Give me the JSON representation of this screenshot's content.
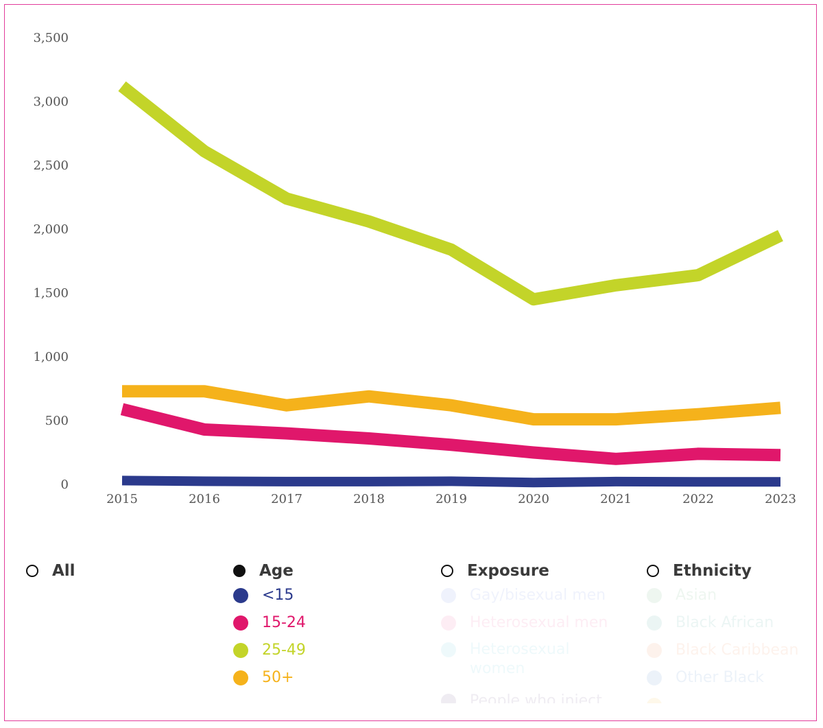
{
  "chart_data": {
    "type": "line",
    "x": [
      2015,
      2016,
      2017,
      2018,
      2019,
      2020,
      2021,
      2022,
      2023
    ],
    "x_tick_labels": [
      "2015",
      "2016",
      "2017",
      "2018",
      "2019",
      "2020",
      "2021",
      "2022",
      "2023"
    ],
    "ylim": [
      0,
      3500
    ],
    "y_ticks": [
      0,
      500,
      1000,
      1500,
      2000,
      2500,
      3000,
      3500
    ],
    "y_tick_labels": [
      "0",
      "500",
      "1,000",
      "1,500",
      "2,000",
      "2,500",
      "3,000",
      "3,500"
    ],
    "grid": false,
    "series": [
      {
        "name": "<15",
        "color": "#2b3a8c",
        "values": [
          30,
          25,
          22,
          22,
          25,
          15,
          22,
          20,
          20
        ]
      },
      {
        "name": "15-24",
        "color": "#e0176b",
        "values": [
          590,
          430,
          400,
          360,
          310,
          250,
          200,
          240,
          230
        ]
      },
      {
        "name": "25-49",
        "color": "#c3d429",
        "values": [
          3120,
          2610,
          2240,
          2060,
          1840,
          1450,
          1560,
          1640,
          1950
        ]
      },
      {
        "name": "50+",
        "color": "#f5b21b",
        "values": [
          730,
          730,
          620,
          690,
          620,
          510,
          510,
          550,
          600
        ]
      }
    ]
  },
  "legend": {
    "all": {
      "label": "All"
    },
    "age": {
      "label": "Age",
      "items": [
        {
          "label": "<15",
          "color": "#2b3a8c"
        },
        {
          "label": "15-24",
          "color": "#e0176b"
        },
        {
          "label": "25-49",
          "color": "#c3d429"
        },
        {
          "label": "50+",
          "color": "#f5b21b"
        }
      ]
    },
    "exposure": {
      "label": "Exposure",
      "items": [
        {
          "label": "Gay/bisexual men",
          "color": "#5c7ee0"
        },
        {
          "label": "Heterosexual men",
          "color": "#ee3f8c"
        },
        {
          "label": "Heterosexual women",
          "color": "#4ec3d6"
        },
        {
          "label": "People who inject",
          "color": "#5b3b7a"
        }
      ]
    },
    "ethnicity": {
      "label": "Ethnicity",
      "items": [
        {
          "label": "Asian",
          "color": "#4aa564"
        },
        {
          "label": "Black African",
          "color": "#2f9d8a"
        },
        {
          "label": "Black Caribbean",
          "color": "#f07a3a"
        },
        {
          "label": "Other Black",
          "color": "#3d7ac2"
        },
        {
          "label": "",
          "color": "#f5b21b"
        }
      ]
    }
  }
}
